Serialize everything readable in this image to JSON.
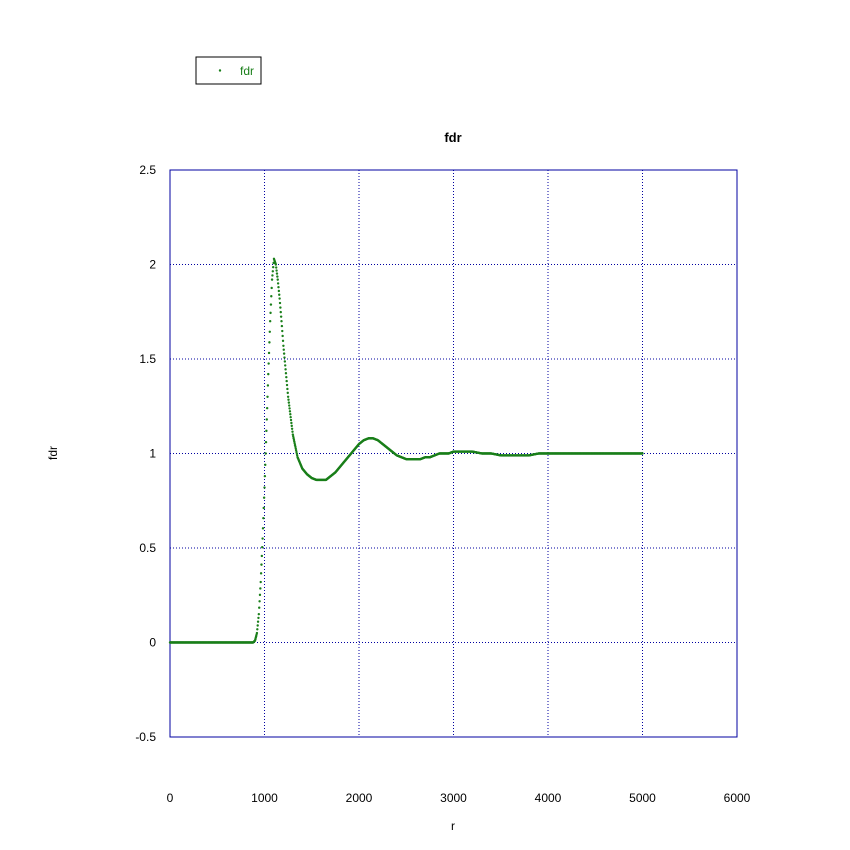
{
  "chart_data": {
    "type": "scatter",
    "title": "fdr",
    "xlabel": "r",
    "ylabel": "fdr",
    "xlim": [
      0,
      6000
    ],
    "ylim": [
      -0.5,
      2.5
    ],
    "x_ticks": [
      0,
      1000,
      2000,
      3000,
      4000,
      5000,
      6000
    ],
    "y_ticks": [
      -0.5,
      0,
      0.5,
      1,
      1.5,
      2,
      2.5
    ],
    "x_tick_labels": [
      "0",
      "1000",
      "2000",
      "3000",
      "4000",
      "5000",
      "6000"
    ],
    "y_tick_labels": [
      "-0.5",
      "0",
      "0.5",
      "1",
      "1.5",
      "2",
      "2.5"
    ],
    "grid": true,
    "legend_position": "top-left, outside plot",
    "series": [
      {
        "name": "fdr",
        "color": "#1a7f1a",
        "marker": "dot",
        "x": [
          0,
          850,
          880,
          900,
          920,
          940,
          960,
          980,
          1000,
          1020,
          1040,
          1060,
          1080,
          1100,
          1120,
          1140,
          1160,
          1180,
          1200,
          1250,
          1300,
          1350,
          1400,
          1450,
          1500,
          1550,
          1600,
          1650,
          1700,
          1750,
          1800,
          1850,
          1900,
          1950,
          2000,
          2050,
          2100,
          2150,
          2200,
          2250,
          2300,
          2350,
          2400,
          2450,
          2500,
          2550,
          2600,
          2650,
          2700,
          2750,
          2800,
          2850,
          2900,
          2950,
          3000,
          3100,
          3200,
          3300,
          3400,
          3500,
          3600,
          3700,
          3800,
          3900,
          4000,
          4200,
          4400,
          4600,
          4800,
          5000
        ],
        "y": [
          0,
          0,
          0,
          0.01,
          0.05,
          0.15,
          0.32,
          0.55,
          0.82,
          1.12,
          1.42,
          1.7,
          1.92,
          2.03,
          2.0,
          1.92,
          1.82,
          1.7,
          1.57,
          1.3,
          1.1,
          0.98,
          0.92,
          0.89,
          0.87,
          0.86,
          0.86,
          0.86,
          0.88,
          0.9,
          0.93,
          0.96,
          0.99,
          1.02,
          1.05,
          1.07,
          1.08,
          1.08,
          1.07,
          1.05,
          1.03,
          1.01,
          0.99,
          0.98,
          0.97,
          0.97,
          0.97,
          0.97,
          0.98,
          0.98,
          0.99,
          1.0,
          1.0,
          1.0,
          1.01,
          1.01,
          1.01,
          1.0,
          1.0,
          0.99,
          0.99,
          0.99,
          0.99,
          1.0,
          1.0,
          1.0,
          1.0,
          1.0,
          1.0,
          1.0
        ]
      }
    ]
  },
  "legend": {
    "label": "fdr"
  }
}
